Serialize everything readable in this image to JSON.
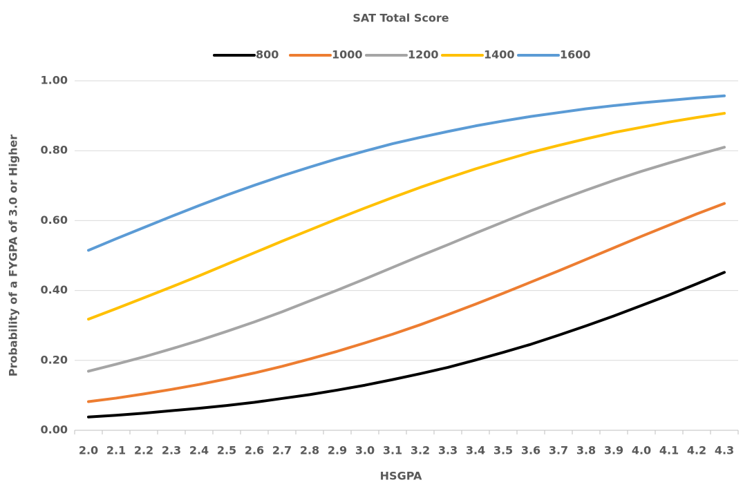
{
  "chart_data": {
    "type": "line",
    "title": "SAT Total Score",
    "x_label": "HSGPA",
    "y_label": "Probability of a FYGPA of 3.0 or Higher",
    "categories": [
      "2.0",
      "2.1",
      "2.2",
      "2.3",
      "2.4",
      "2.5",
      "2.6",
      "2.7",
      "2.8",
      "2.9",
      "3.0",
      "3.1",
      "3.2",
      "3.3",
      "3.4",
      "3.5",
      "3.6",
      "3.7",
      "3.8",
      "3.9",
      "4.0",
      "4.1",
      "4.2",
      "4.3"
    ],
    "series": [
      {
        "name": "800",
        "color": "#000000",
        "values": [
          0.038,
          0.043,
          0.049,
          0.056,
          0.063,
          0.071,
          0.08,
          0.091,
          0.102,
          0.115,
          0.129,
          0.145,
          0.162,
          0.18,
          0.201,
          0.223,
          0.246,
          0.272,
          0.299,
          0.327,
          0.357,
          0.387,
          0.419,
          0.452
        ]
      },
      {
        "name": "1000",
        "color": "#ed7d31",
        "values": [
          0.082,
          0.092,
          0.104,
          0.117,
          0.131,
          0.147,
          0.164,
          0.183,
          0.204,
          0.226,
          0.25,
          0.275,
          0.302,
          0.331,
          0.361,
          0.392,
          0.424,
          0.456,
          0.489,
          0.522,
          0.555,
          0.587,
          0.619,
          0.649
        ]
      },
      {
        "name": "1200",
        "color": "#a5a5a5",
        "values": [
          0.169,
          0.189,
          0.21,
          0.233,
          0.257,
          0.283,
          0.31,
          0.339,
          0.37,
          0.401,
          0.433,
          0.466,
          0.499,
          0.531,
          0.564,
          0.596,
          0.628,
          0.658,
          0.687,
          0.715,
          0.741,
          0.765,
          0.788,
          0.81
        ]
      },
      {
        "name": "1400",
        "color": "#ffc000",
        "values": [
          0.318,
          0.348,
          0.379,
          0.41,
          0.442,
          0.475,
          0.508,
          0.541,
          0.573,
          0.605,
          0.636,
          0.666,
          0.695,
          0.722,
          0.748,
          0.772,
          0.795,
          0.815,
          0.834,
          0.852,
          0.867,
          0.882,
          0.895,
          0.907
        ]
      },
      {
        "name": "1600",
        "color": "#5b9bd5",
        "values": [
          0.515,
          0.548,
          0.58,
          0.612,
          0.643,
          0.673,
          0.701,
          0.728,
          0.753,
          0.777,
          0.799,
          0.82,
          0.838,
          0.855,
          0.871,
          0.885,
          0.898,
          0.909,
          0.92,
          0.929,
          0.937,
          0.944,
          0.951,
          0.957
        ]
      }
    ],
    "ylim": [
      0,
      1
    ],
    "yticks": [
      {
        "value": 0,
        "label": "0.00"
      },
      {
        "value": 0.2,
        "label": "0.20"
      },
      {
        "value": 0.4,
        "label": "0.40"
      },
      {
        "value": 0.6,
        "label": "0.60"
      },
      {
        "value": 0.8,
        "label": "0.80"
      },
      {
        "value": 1,
        "label": "1.00"
      }
    ],
    "grid": true,
    "legend": "top"
  }
}
